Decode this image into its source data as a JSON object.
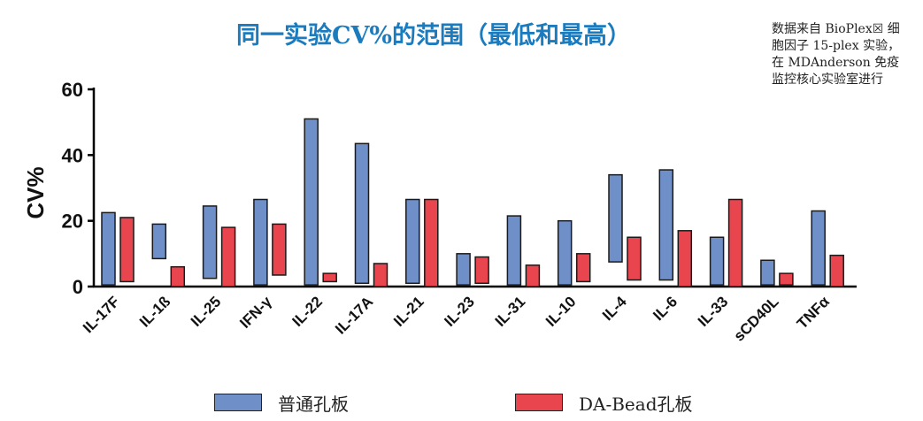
{
  "title": "同一实验CV%的范围（最低和最高）",
  "note_lines": [
    "数据来自 BioPlex☒ 细",
    "胞因子 15-plex 实验，",
    "在 MDAnderson 免疫",
    "监控核心实验室进行"
  ],
  "colors": {
    "series_a": "#6f8fc9",
    "series_b": "#e8454f",
    "title": "#1a7bbf"
  },
  "chart_data": {
    "type": "bar",
    "subtype": "floating-range",
    "title": "同一实验CV%的范围（最低和最高）",
    "ylabel": "CV%",
    "xlabel": "",
    "ylim": [
      0,
      60
    ],
    "yticks": [
      0,
      20,
      40,
      60
    ],
    "grid": false,
    "legend_position": "bottom",
    "categories": [
      "IL-17F",
      "IL-1ß",
      "IL-25",
      "IFN-γ",
      "IL-22",
      "IL-17A",
      "IL-21",
      "IL-23",
      "IL-31",
      "IL-10",
      "IL-4",
      "IL-6",
      "IL-33",
      "sCD40L",
      "TNFα"
    ],
    "series": [
      {
        "name": "普通孔板",
        "low": [
          0.5,
          8.5,
          2.5,
          0.5,
          0.5,
          1,
          1,
          0.5,
          0.5,
          0.5,
          7.5,
          2,
          0.5,
          0.5,
          0.5
        ],
        "high": [
          22.5,
          19,
          24.5,
          26.5,
          51,
          43.5,
          26.5,
          10,
          21.5,
          20,
          34,
          35.5,
          15,
          8,
          23
        ]
      },
      {
        "name": "DA-Bead孔板",
        "low": [
          1.5,
          0,
          0,
          3.5,
          1.5,
          0,
          0,
          1,
          0,
          1.5,
          2,
          0,
          0,
          0.5,
          0
        ],
        "high": [
          21,
          6,
          18,
          19,
          4,
          7,
          26.5,
          9,
          6.5,
          10,
          15,
          17,
          26.5,
          4,
          9.5
        ]
      }
    ]
  }
}
